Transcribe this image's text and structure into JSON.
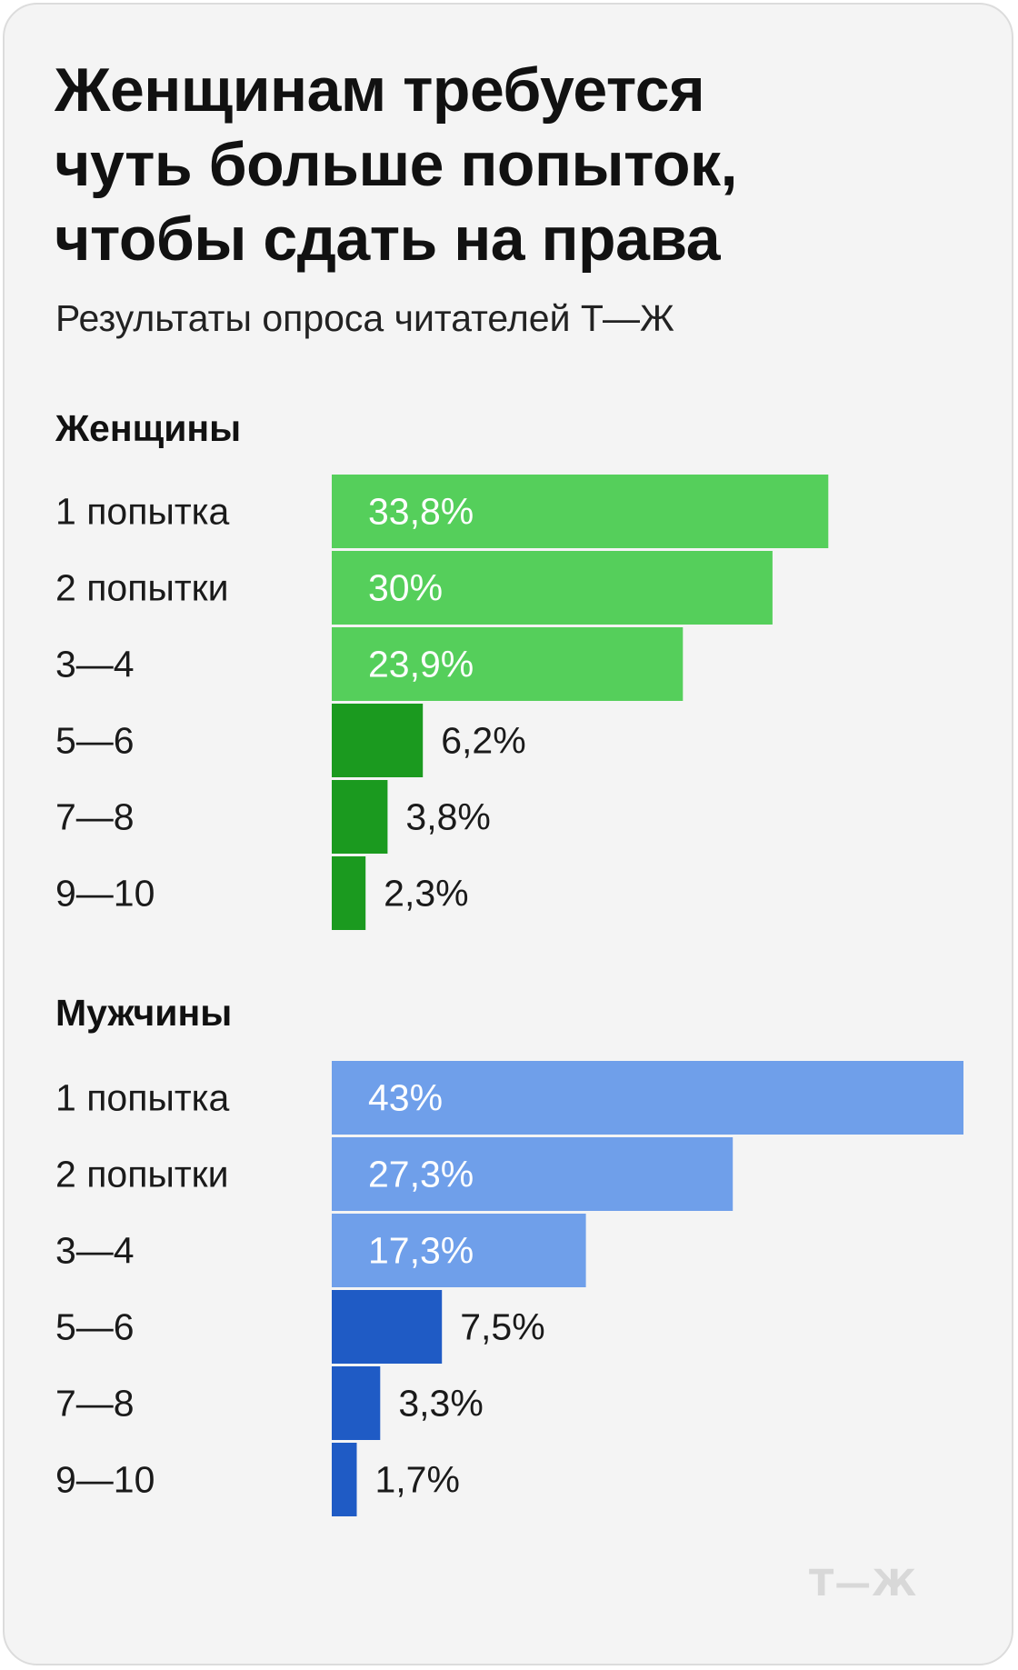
{
  "header": {
    "title": "Женщинам требуется чуть больше попыток, чтобы сдать на права",
    "subtitle": "Результаты опроса читателей Т—Ж"
  },
  "logo": "Т—Ж",
  "colors": {
    "women_light": "#55cf5b",
    "women_dark": "#1b9a1f",
    "men_light": "#6f9fea",
    "men_dark": "#1f5bc5",
    "label_text": "#1a1a1a",
    "inside_label": "#ffffff"
  },
  "chart_data": [
    {
      "type": "bar",
      "orientation": "horizontal",
      "title": "Женщины",
      "categories": [
        "1 попытка",
        "2 попытки",
        "3—4",
        "5—6",
        "7—8",
        "9—10"
      ],
      "values": [
        33.8,
        30,
        23.9,
        6.2,
        3.8,
        2.3
      ],
      "value_labels": [
        "33,8%",
        "30%",
        "23,9%",
        "6,2%",
        "3,8%",
        "2,3%"
      ],
      "unit": "%",
      "xlim": [
        0,
        43
      ]
    },
    {
      "type": "bar",
      "orientation": "horizontal",
      "title": "Мужчины",
      "categories": [
        "1 попытка",
        "2 попытки",
        "3—4",
        "5—6",
        "7—8",
        "9—10"
      ],
      "values": [
        43,
        27.3,
        17.3,
        7.5,
        3.3,
        1.7
      ],
      "value_labels": [
        "43%",
        "27,3%",
        "17,3%",
        "7,5%",
        "3,3%",
        "1,7%"
      ],
      "unit": "%",
      "xlim": [
        0,
        43
      ]
    }
  ]
}
